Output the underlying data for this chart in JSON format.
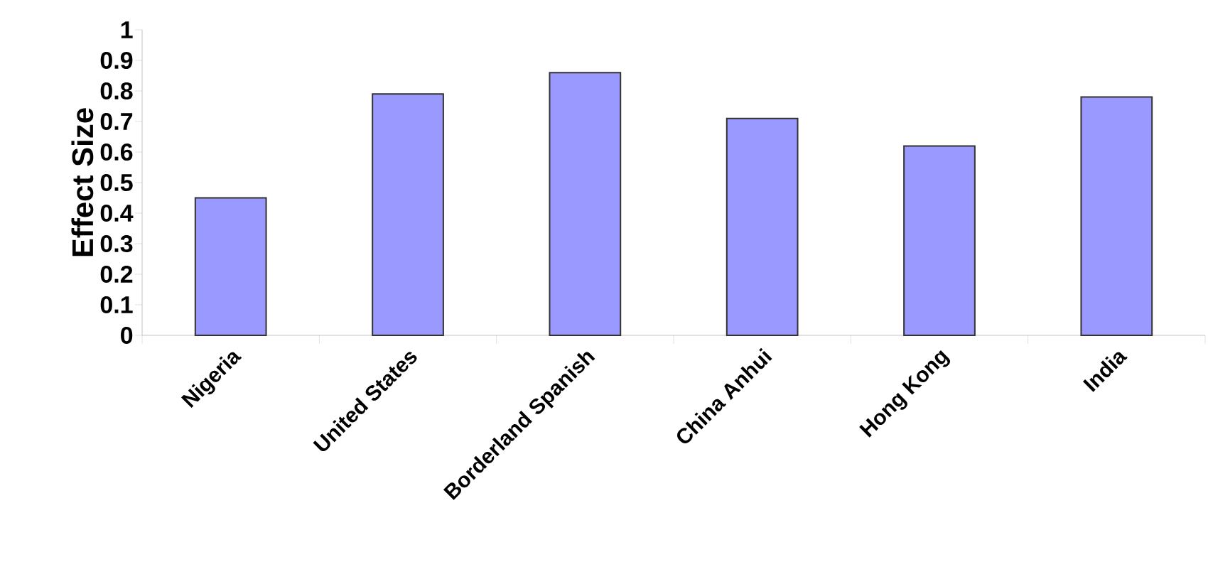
{
  "chart_data": {
    "type": "bar",
    "ylabel": "Effect Size",
    "categories": [
      "Nigeria",
      "United States",
      "Borderland Spanish",
      "China Anhui",
      "Hong Kong",
      "India"
    ],
    "values": [
      0.45,
      0.79,
      0.86,
      0.71,
      0.62,
      0.78
    ],
    "color": "#9999ff",
    "ylim": [
      0,
      1
    ],
    "yticks": [
      0,
      0.1,
      0.2,
      0.3,
      0.4,
      0.5,
      0.6,
      0.7,
      0.8,
      0.9,
      1
    ]
  }
}
